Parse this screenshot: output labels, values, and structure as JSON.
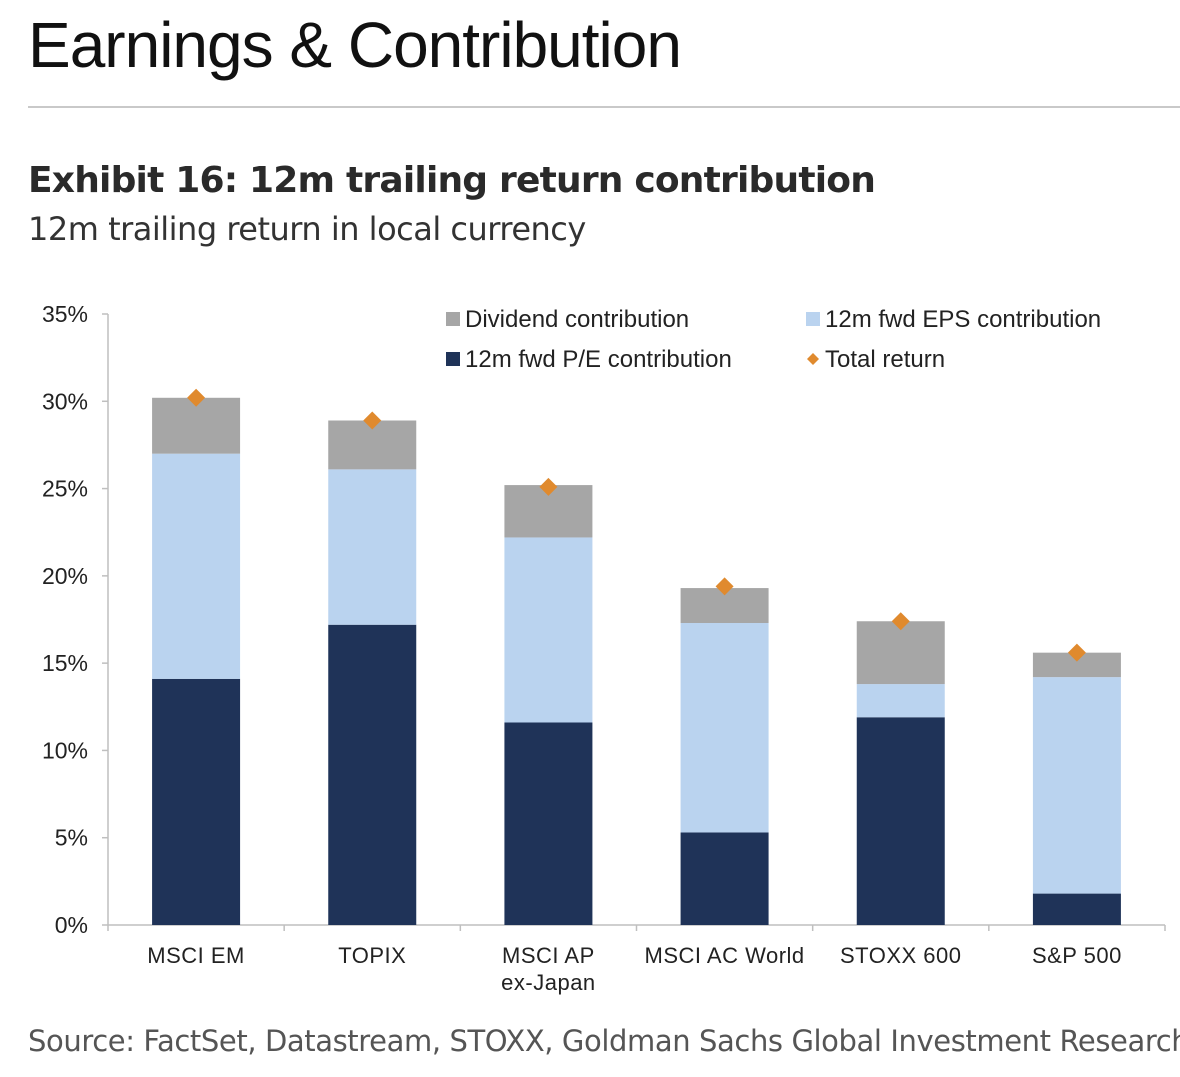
{
  "page": {
    "headline": "Earnings & Contribution",
    "exhibit_title": "Exhibit 16: 12m trailing return contribution",
    "subtitle": "12m trailing return in local currency",
    "source": "Source: FactSet, Datastream, STOXX, Goldman Sachs Global Investment Research"
  },
  "chart_data": {
    "type": "bar",
    "stacked": true,
    "categories": [
      [
        "MSCI EM"
      ],
      [
        "TOPIX"
      ],
      [
        "MSCI AP",
        "ex-Japan"
      ],
      [
        "MSCI AC World"
      ],
      [
        "STOXX 600"
      ],
      [
        "S&P 500"
      ]
    ],
    "series": [
      {
        "name": "12m fwd P/E contribution",
        "color": "#1f3358",
        "values": [
          14.1,
          17.2,
          11.6,
          5.3,
          11.9,
          1.8
        ]
      },
      {
        "name": "12m fwd EPS contribution",
        "color": "#bad3ef",
        "values": [
          12.9,
          8.9,
          10.6,
          12.0,
          1.9,
          12.4
        ]
      },
      {
        "name": "Dividend contribution",
        "color": "#a6a6a6",
        "values": [
          3.2,
          2.8,
          3.0,
          2.0,
          3.6,
          1.4
        ]
      }
    ],
    "markers": {
      "name": "Total return",
      "color": "#e08a2e",
      "values": [
        30.2,
        28.9,
        25.1,
        19.4,
        17.4,
        15.6
      ]
    },
    "legend": [
      {
        "label": "Dividend contribution",
        "color": "#a6a6a6",
        "shape": "square"
      },
      {
        "label": "12m fwd EPS contribution",
        "color": "#bad3ef",
        "shape": "square"
      },
      {
        "label": "12m fwd P/E contribution",
        "color": "#1f3358",
        "shape": "square"
      },
      {
        "label": "Total return",
        "color": "#e08a2e",
        "shape": "diamond"
      }
    ],
    "legend_position": "top-right",
    "yticks": [
      "0%",
      "5%",
      "10%",
      "15%",
      "20%",
      "25%",
      "30%",
      "35%"
    ],
    "ylim": [
      0,
      35
    ],
    "xlabel": "",
    "ylabel": "",
    "grid": false
  }
}
